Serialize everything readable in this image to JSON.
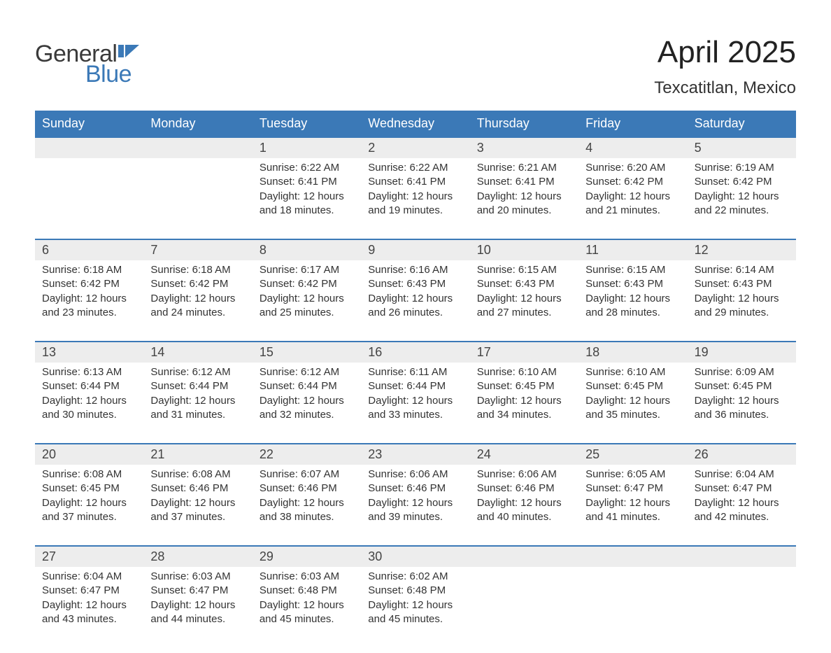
{
  "logo": {
    "text_general": "General",
    "text_blue": "Blue",
    "icon_color": "#3b79b7"
  },
  "header": {
    "title": "April 2025",
    "subtitle": "Texcatitlan, Mexico"
  },
  "colors": {
    "header_bg": "#3b79b7",
    "header_text": "#ffffff",
    "daynum_bg": "#ededed",
    "week_border": "#3b79b7",
    "body_text": "#333333",
    "page_bg": "#ffffff"
  },
  "day_names": [
    "Sunday",
    "Monday",
    "Tuesday",
    "Wednesday",
    "Thursday",
    "Friday",
    "Saturday"
  ],
  "weeks": [
    [
      {
        "num": "",
        "sunrise": "",
        "sunset": "",
        "daylight": ""
      },
      {
        "num": "",
        "sunrise": "",
        "sunset": "",
        "daylight": ""
      },
      {
        "num": "1",
        "sunrise": "Sunrise: 6:22 AM",
        "sunset": "Sunset: 6:41 PM",
        "daylight": "Daylight: 12 hours and 18 minutes."
      },
      {
        "num": "2",
        "sunrise": "Sunrise: 6:22 AM",
        "sunset": "Sunset: 6:41 PM",
        "daylight": "Daylight: 12 hours and 19 minutes."
      },
      {
        "num": "3",
        "sunrise": "Sunrise: 6:21 AM",
        "sunset": "Sunset: 6:41 PM",
        "daylight": "Daylight: 12 hours and 20 minutes."
      },
      {
        "num": "4",
        "sunrise": "Sunrise: 6:20 AM",
        "sunset": "Sunset: 6:42 PM",
        "daylight": "Daylight: 12 hours and 21 minutes."
      },
      {
        "num": "5",
        "sunrise": "Sunrise: 6:19 AM",
        "sunset": "Sunset: 6:42 PM",
        "daylight": "Daylight: 12 hours and 22 minutes."
      }
    ],
    [
      {
        "num": "6",
        "sunrise": "Sunrise: 6:18 AM",
        "sunset": "Sunset: 6:42 PM",
        "daylight": "Daylight: 12 hours and 23 minutes."
      },
      {
        "num": "7",
        "sunrise": "Sunrise: 6:18 AM",
        "sunset": "Sunset: 6:42 PM",
        "daylight": "Daylight: 12 hours and 24 minutes."
      },
      {
        "num": "8",
        "sunrise": "Sunrise: 6:17 AM",
        "sunset": "Sunset: 6:42 PM",
        "daylight": "Daylight: 12 hours and 25 minutes."
      },
      {
        "num": "9",
        "sunrise": "Sunrise: 6:16 AM",
        "sunset": "Sunset: 6:43 PM",
        "daylight": "Daylight: 12 hours and 26 minutes."
      },
      {
        "num": "10",
        "sunrise": "Sunrise: 6:15 AM",
        "sunset": "Sunset: 6:43 PM",
        "daylight": "Daylight: 12 hours and 27 minutes."
      },
      {
        "num": "11",
        "sunrise": "Sunrise: 6:15 AM",
        "sunset": "Sunset: 6:43 PM",
        "daylight": "Daylight: 12 hours and 28 minutes."
      },
      {
        "num": "12",
        "sunrise": "Sunrise: 6:14 AM",
        "sunset": "Sunset: 6:43 PM",
        "daylight": "Daylight: 12 hours and 29 minutes."
      }
    ],
    [
      {
        "num": "13",
        "sunrise": "Sunrise: 6:13 AM",
        "sunset": "Sunset: 6:44 PM",
        "daylight": "Daylight: 12 hours and 30 minutes."
      },
      {
        "num": "14",
        "sunrise": "Sunrise: 6:12 AM",
        "sunset": "Sunset: 6:44 PM",
        "daylight": "Daylight: 12 hours and 31 minutes."
      },
      {
        "num": "15",
        "sunrise": "Sunrise: 6:12 AM",
        "sunset": "Sunset: 6:44 PM",
        "daylight": "Daylight: 12 hours and 32 minutes."
      },
      {
        "num": "16",
        "sunrise": "Sunrise: 6:11 AM",
        "sunset": "Sunset: 6:44 PM",
        "daylight": "Daylight: 12 hours and 33 minutes."
      },
      {
        "num": "17",
        "sunrise": "Sunrise: 6:10 AM",
        "sunset": "Sunset: 6:45 PM",
        "daylight": "Daylight: 12 hours and 34 minutes."
      },
      {
        "num": "18",
        "sunrise": "Sunrise: 6:10 AM",
        "sunset": "Sunset: 6:45 PM",
        "daylight": "Daylight: 12 hours and 35 minutes."
      },
      {
        "num": "19",
        "sunrise": "Sunrise: 6:09 AM",
        "sunset": "Sunset: 6:45 PM",
        "daylight": "Daylight: 12 hours and 36 minutes."
      }
    ],
    [
      {
        "num": "20",
        "sunrise": "Sunrise: 6:08 AM",
        "sunset": "Sunset: 6:45 PM",
        "daylight": "Daylight: 12 hours and 37 minutes."
      },
      {
        "num": "21",
        "sunrise": "Sunrise: 6:08 AM",
        "sunset": "Sunset: 6:46 PM",
        "daylight": "Daylight: 12 hours and 37 minutes."
      },
      {
        "num": "22",
        "sunrise": "Sunrise: 6:07 AM",
        "sunset": "Sunset: 6:46 PM",
        "daylight": "Daylight: 12 hours and 38 minutes."
      },
      {
        "num": "23",
        "sunrise": "Sunrise: 6:06 AM",
        "sunset": "Sunset: 6:46 PM",
        "daylight": "Daylight: 12 hours and 39 minutes."
      },
      {
        "num": "24",
        "sunrise": "Sunrise: 6:06 AM",
        "sunset": "Sunset: 6:46 PM",
        "daylight": "Daylight: 12 hours and 40 minutes."
      },
      {
        "num": "25",
        "sunrise": "Sunrise: 6:05 AM",
        "sunset": "Sunset: 6:47 PM",
        "daylight": "Daylight: 12 hours and 41 minutes."
      },
      {
        "num": "26",
        "sunrise": "Sunrise: 6:04 AM",
        "sunset": "Sunset: 6:47 PM",
        "daylight": "Daylight: 12 hours and 42 minutes."
      }
    ],
    [
      {
        "num": "27",
        "sunrise": "Sunrise: 6:04 AM",
        "sunset": "Sunset: 6:47 PM",
        "daylight": "Daylight: 12 hours and 43 minutes."
      },
      {
        "num": "28",
        "sunrise": "Sunrise: 6:03 AM",
        "sunset": "Sunset: 6:47 PM",
        "daylight": "Daylight: 12 hours and 44 minutes."
      },
      {
        "num": "29",
        "sunrise": "Sunrise: 6:03 AM",
        "sunset": "Sunset: 6:48 PM",
        "daylight": "Daylight: 12 hours and 45 minutes."
      },
      {
        "num": "30",
        "sunrise": "Sunrise: 6:02 AM",
        "sunset": "Sunset: 6:48 PM",
        "daylight": "Daylight: 12 hours and 45 minutes."
      },
      {
        "num": "",
        "sunrise": "",
        "sunset": "",
        "daylight": ""
      },
      {
        "num": "",
        "sunrise": "",
        "sunset": "",
        "daylight": ""
      },
      {
        "num": "",
        "sunrise": "",
        "sunset": "",
        "daylight": ""
      }
    ]
  ]
}
